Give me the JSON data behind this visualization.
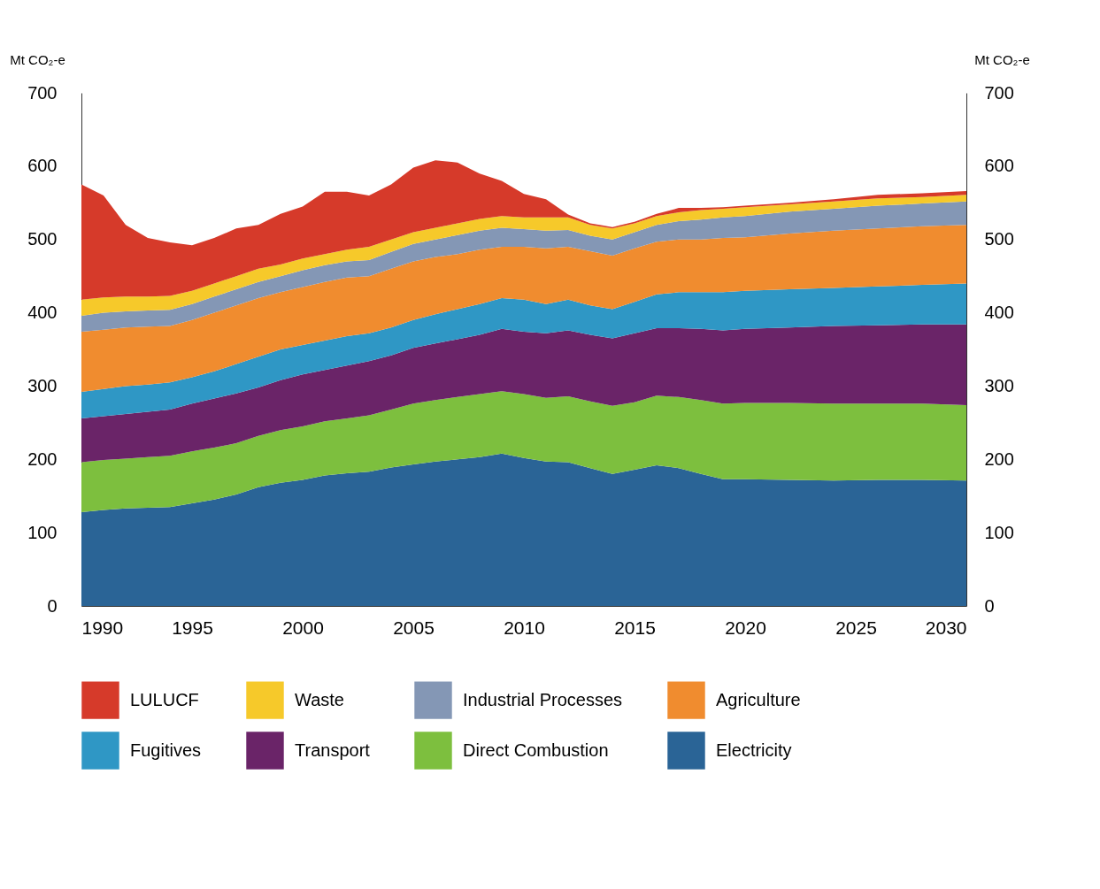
{
  "chart_data": {
    "type": "area",
    "stacked": true,
    "ylabel": "Mt CO₂-e",
    "y2label": "Mt CO₂-e",
    "x": [
      1990,
      1991,
      1992,
      1993,
      1994,
      1995,
      1996,
      1997,
      1998,
      1999,
      2000,
      2001,
      2002,
      2003,
      2004,
      2005,
      2006,
      2007,
      2008,
      2009,
      2010,
      2011,
      2012,
      2013,
      2014,
      2015,
      2016,
      2017,
      2018,
      2019,
      2020,
      2022,
      2024,
      2026,
      2028,
      2030
    ],
    "xlim": [
      1990,
      2030
    ],
    "xticks": [
      1990,
      1995,
      2000,
      2005,
      2010,
      2015,
      2020,
      2025,
      2030
    ],
    "ylim": [
      0,
      700
    ],
    "yticks": [
      0,
      100,
      200,
      300,
      400,
      500,
      600,
      700
    ],
    "y2lim": [
      0,
      700
    ],
    "y2ticks": [
      0,
      100,
      200,
      300,
      400,
      500,
      600,
      700
    ],
    "grid": false,
    "legend": "bottom",
    "series": [
      {
        "name": "Electricity",
        "color": "#2a6496",
        "values": [
          128,
          131,
          133,
          134,
          135,
          140,
          145,
          152,
          162,
          168,
          172,
          178,
          181,
          183,
          189,
          193,
          197,
          200,
          203,
          208,
          202,
          197,
          196,
          188,
          180,
          186,
          192,
          188,
          180,
          173,
          173,
          172,
          171,
          172,
          172,
          171
        ]
      },
      {
        "name": "Direct Combustion",
        "color": "#7dbf3e",
        "values": [
          68,
          68,
          68,
          69,
          70,
          71,
          71,
          70,
          70,
          72,
          73,
          74,
          75,
          77,
          79,
          83,
          84,
          85,
          86,
          85,
          87,
          87,
          90,
          91,
          93,
          92,
          95,
          97,
          101,
          103,
          104,
          105,
          105,
          104,
          104,
          103
        ]
      },
      {
        "name": "Transport",
        "color": "#6a2468",
        "values": [
          60,
          60,
          61,
          62,
          63,
          65,
          67,
          68,
          66,
          68,
          71,
          70,
          72,
          74,
          74,
          76,
          77,
          79,
          81,
          85,
          85,
          88,
          90,
          91,
          92,
          94,
          92,
          94,
          97,
          100,
          101,
          103,
          106,
          107,
          108,
          110
        ]
      },
      {
        "name": "Fugitives",
        "color": "#2f97c5",
        "values": [
          36,
          37,
          38,
          37,
          37,
          36,
          37,
          40,
          42,
          42,
          40,
          40,
          40,
          38,
          38,
          38,
          40,
          41,
          42,
          42,
          44,
          40,
          42,
          40,
          40,
          43,
          46,
          49,
          50,
          52,
          52,
          52,
          52,
          53,
          54,
          56
        ]
      },
      {
        "name": "Agriculture",
        "color": "#f08c2f",
        "values": [
          82,
          81,
          80,
          79,
          77,
          78,
          80,
          80,
          80,
          78,
          79,
          80,
          80,
          78,
          80,
          80,
          78,
          75,
          74,
          70,
          72,
          76,
          72,
          74,
          73,
          73,
          72,
          72,
          72,
          74,
          73,
          76,
          78,
          79,
          80,
          80
        ]
      },
      {
        "name": "Industrial Processes",
        "color": "#8497b5",
        "values": [
          22,
          23,
          22,
          22,
          22,
          22,
          22,
          22,
          22,
          22,
          23,
          23,
          22,
          22,
          23,
          24,
          24,
          26,
          26,
          26,
          24,
          24,
          23,
          21,
          22,
          22,
          23,
          25,
          27,
          28,
          29,
          30,
          30,
          31,
          31,
          32
        ]
      },
      {
        "name": "Waste",
        "color": "#f6c92a",
        "values": [
          22,
          21,
          20,
          19,
          19,
          18,
          18,
          18,
          18,
          16,
          16,
          15,
          16,
          18,
          17,
          16,
          16,
          16,
          16,
          16,
          16,
          18,
          17,
          15,
          15,
          12,
          12,
          12,
          13,
          12,
          12,
          10,
          10,
          10,
          9,
          9
        ]
      },
      {
        "name": "LULUCF",
        "color": "#d63a2a",
        "values": [
          157,
          139,
          98,
          80,
          73,
          62,
          62,
          65,
          60,
          69,
          71,
          85,
          79,
          70,
          75,
          88,
          92,
          83,
          62,
          48,
          32,
          25,
          4,
          2,
          2,
          2,
          3,
          6,
          3,
          2,
          2,
          2,
          3,
          5,
          5,
          5
        ]
      }
    ]
  }
}
